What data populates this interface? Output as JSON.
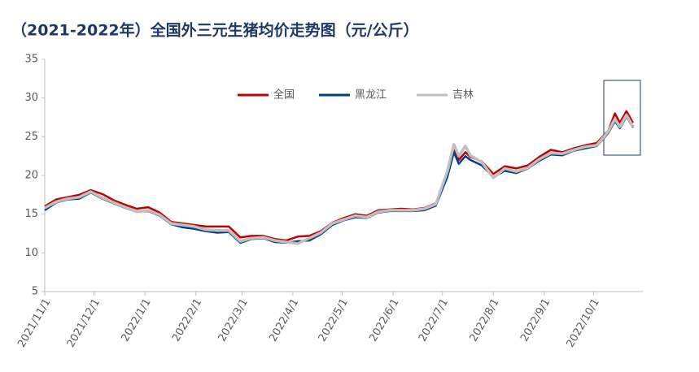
{
  "chart_data": {
    "type": "line",
    "title": "（2021-2022年）全国外三元生猪均价走势图（元/公斤）",
    "x": [
      "2021/11/1",
      "2021/11/8",
      "2021/11/15",
      "2021/11/22",
      "2021/11/29",
      "2021/12/6",
      "2021/12/13",
      "2021/12/20",
      "2021/12/27",
      "2022/1/3",
      "2022/1/10",
      "2022/1/17",
      "2022/1/24",
      "2022/1/31",
      "2022/2/7",
      "2022/2/14",
      "2022/2/21",
      "2022/2/28",
      "2022/3/7",
      "2022/3/14",
      "2022/3/21",
      "2022/3/28",
      "2022/4/4",
      "2022/4/11",
      "2022/4/18",
      "2022/4/25",
      "2022/5/2",
      "2022/5/9",
      "2022/5/16",
      "2022/5/23",
      "2022/5/30",
      "2022/6/6",
      "2022/6/13",
      "2022/6/20",
      "2022/6/27",
      "2022/7/4",
      "2022/7/8",
      "2022/7/11",
      "2022/7/15",
      "2022/7/18",
      "2022/7/25",
      "2022/8/1",
      "2022/8/8",
      "2022/8/15",
      "2022/8/22",
      "2022/8/29",
      "2022/9/5",
      "2022/9/12",
      "2022/9/19",
      "2022/9/26",
      "2022/10/3",
      "2022/10/10",
      "2022/10/14",
      "2022/10/17",
      "2022/10/21",
      "2022/10/25"
    ],
    "series": [
      {
        "name": "全国",
        "color": "#c00000",
        "values": [
          16.0,
          16.9,
          17.2,
          17.5,
          18.1,
          17.6,
          16.8,
          16.2,
          15.7,
          15.9,
          15.2,
          14.0,
          13.8,
          13.6,
          13.4,
          13.4,
          13.4,
          12.0,
          12.2,
          12.2,
          11.8,
          11.6,
          12.1,
          12.2,
          12.8,
          13.9,
          14.5,
          15.0,
          14.8,
          15.5,
          15.6,
          15.7,
          15.6,
          15.8,
          16.4,
          20.2,
          23.5,
          22.0,
          23.0,
          22.4,
          21.8,
          20.2,
          21.2,
          20.9,
          21.3,
          22.4,
          23.3,
          23.0,
          23.5,
          23.9,
          24.2,
          25.8,
          28.0,
          26.8,
          28.3,
          26.8
        ]
      },
      {
        "name": "黑龙江",
        "color": "#003f88",
        "values": [
          15.5,
          16.5,
          16.9,
          17.0,
          17.8,
          17.0,
          16.4,
          15.8,
          15.3,
          15.4,
          14.8,
          13.7,
          13.3,
          13.1,
          12.8,
          12.6,
          12.7,
          11.3,
          11.8,
          11.9,
          11.4,
          11.3,
          11.5,
          11.6,
          12.4,
          13.6,
          14.2,
          14.6,
          14.5,
          15.2,
          15.4,
          15.4,
          15.4,
          15.5,
          16.1,
          19.8,
          23.0,
          21.5,
          22.5,
          22.0,
          21.3,
          19.8,
          20.6,
          20.3,
          20.9,
          21.9,
          22.7,
          22.6,
          23.2,
          23.5,
          23.8,
          25.5,
          27.0,
          26.1,
          27.6,
          26.2
        ]
      },
      {
        "name": "吉林",
        "color": "#bfbfbf",
        "values": [
          15.8,
          16.6,
          17.0,
          17.2,
          17.9,
          17.1,
          16.5,
          15.9,
          15.3,
          15.5,
          14.9,
          13.8,
          13.6,
          13.4,
          13.0,
          12.9,
          12.9,
          11.5,
          11.9,
          12.0,
          11.6,
          11.4,
          11.2,
          11.9,
          12.6,
          13.8,
          14.3,
          14.8,
          14.6,
          15.3,
          15.5,
          15.5,
          15.5,
          15.7,
          16.3,
          20.5,
          24.0,
          22.5,
          23.8,
          22.6,
          21.7,
          19.7,
          20.9,
          20.5,
          21.0,
          22.1,
          22.9,
          22.8,
          23.3,
          23.7,
          23.9,
          25.7,
          27.3,
          26.3,
          27.8,
          26.3
        ]
      }
    ],
    "xlim": [
      "2021/11/1",
      "2022/10/31"
    ],
    "xticks": [
      "2021/11/1",
      "2021/12/1",
      "2022/1/1",
      "2022/2/1",
      "2022/3/1",
      "2022/4/1",
      "2022/5/1",
      "2022/6/1",
      "2022/7/1",
      "2022/8/1",
      "2022/9/1",
      "2022/10/1"
    ],
    "ylim": [
      5,
      35
    ],
    "yticks": [
      5,
      10,
      15,
      20,
      25,
      30,
      35
    ],
    "grid": false
  }
}
